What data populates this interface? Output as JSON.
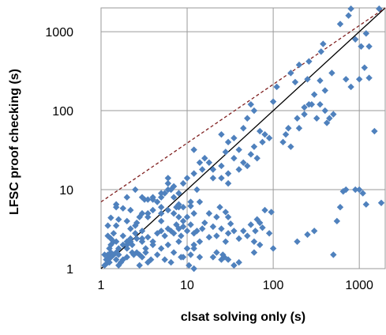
{
  "chart_data": {
    "type": "scatter",
    "xlabel": "clsat solving only (s)",
    "ylabel": "LFSC proof checking (s)",
    "xscale": "log",
    "yscale": "log",
    "xlim": [
      1,
      2000
    ],
    "ylim": [
      1,
      2000
    ],
    "xticks": [
      1,
      10,
      100,
      1000
    ],
    "yticks": [
      1,
      10,
      100,
      1000
    ],
    "xtick_labels": [
      "1",
      "10",
      "100",
      "1000"
    ],
    "ytick_labels": [
      "1",
      "10",
      "100",
      "1000"
    ],
    "grid": true,
    "legend": "none",
    "marker_color": "#4f81bd",
    "reference_lines": [
      {
        "style": "solid",
        "color": "#000000",
        "points": [
          [
            1,
            1
          ],
          [
            2000,
            2000
          ]
        ]
      },
      {
        "style": "dashed",
        "color": "#7f1f1f",
        "points": [
          [
            1,
            7
          ],
          [
            2000,
            2000
          ]
        ]
      }
    ],
    "series": [
      {
        "points": [
          [
            800,
            1950
          ],
          [
            1700,
            1950
          ],
          [
            750,
            1600
          ],
          [
            600,
            1250
          ],
          [
            1200,
            950
          ],
          [
            1300,
            650
          ],
          [
            1050,
            650
          ],
          [
            900,
            800
          ],
          [
            700,
            250
          ],
          [
            1300,
            260
          ],
          [
            1000,
            250
          ],
          [
            1150,
            350
          ],
          [
            800,
            200
          ],
          [
            380,
            700
          ],
          [
            360,
            560
          ],
          [
            260,
            420
          ],
          [
            200,
            380
          ],
          [
            160,
            300
          ],
          [
            110,
            200
          ],
          [
            180,
            230
          ],
          [
            250,
            250
          ],
          [
            350,
            240
          ],
          [
            400,
            180
          ],
          [
            480,
            300
          ],
          [
            300,
            160
          ],
          [
            280,
            120
          ],
          [
            350,
            120
          ],
          [
            320,
            80
          ],
          [
            400,
            100
          ],
          [
            450,
            80
          ],
          [
            500,
            90
          ],
          [
            420,
            70
          ],
          [
            230,
            110
          ],
          [
            230,
            90
          ],
          [
            190,
            80
          ],
          [
            150,
            60
          ],
          [
            140,
            50
          ],
          [
            130,
            40
          ],
          [
            160,
            35
          ],
          [
            200,
            60
          ],
          [
            260,
            120
          ],
          [
            100,
            130
          ],
          [
            60,
            100
          ],
          [
            55,
            120
          ],
          [
            50,
            80
          ],
          [
            45,
            60
          ],
          [
            70,
            55
          ],
          [
            80,
            50
          ],
          [
            90,
            45
          ],
          [
            75,
            40
          ],
          [
            60,
            35
          ],
          [
            55,
            28
          ],
          [
            65,
            25
          ],
          [
            40,
            32
          ],
          [
            35,
            45
          ],
          [
            30,
            40
          ],
          [
            25,
            50
          ],
          [
            28,
            30
          ],
          [
            35,
            25
          ],
          [
            45,
            22
          ],
          [
            50,
            20
          ],
          [
            40,
            18
          ],
          [
            30,
            16
          ],
          [
            25,
            20
          ],
          [
            20,
            18
          ],
          [
            18,
            22
          ],
          [
            16,
            25
          ],
          [
            15,
            18
          ],
          [
            20,
            14
          ],
          [
            25,
            14
          ],
          [
            30,
            12
          ],
          [
            12,
            32
          ],
          [
            14,
            22
          ],
          [
            12,
            16
          ],
          [
            10,
            14
          ],
          [
            9,
            12
          ],
          [
            8,
            9
          ],
          [
            7,
            8
          ],
          [
            6,
            12
          ],
          [
            6,
            10
          ],
          [
            5,
            8
          ],
          [
            5,
            6
          ],
          [
            4,
            8
          ],
          [
            3.5,
            7.5
          ],
          [
            3.2,
            7.5
          ],
          [
            3,
            5
          ],
          [
            2.8,
            4.5
          ],
          [
            2.5,
            3.5
          ],
          [
            2.5,
            2.8
          ],
          [
            2.2,
            2.4
          ],
          [
            2,
            2.2
          ],
          [
            2,
            2
          ],
          [
            1.8,
            2
          ],
          [
            1.6,
            1.8
          ],
          [
            1.5,
            1.6
          ],
          [
            1.4,
            2.2
          ],
          [
            1.4,
            1.5
          ],
          [
            1.3,
            1.4
          ],
          [
            1.25,
            1.2
          ],
          [
            1.2,
            1.2
          ],
          [
            1.15,
            1.3
          ],
          [
            1.1,
            1.1
          ],
          [
            1.2,
            1.5
          ],
          [
            1.25,
            1.8
          ],
          [
            1.3,
            2
          ],
          [
            1.3,
            4.4
          ],
          [
            1.2,
            3.5
          ],
          [
            1.2,
            2.6
          ],
          [
            1.3,
            2.4
          ],
          [
            1.4,
            2.8
          ],
          [
            1.5,
            3.5
          ],
          [
            1.6,
            4.2
          ],
          [
            1.5,
            6.5
          ],
          [
            1.8,
            5.8
          ],
          [
            2,
            4
          ],
          [
            2.2,
            3.2
          ],
          [
            2.2,
            2.2
          ],
          [
            2,
            1.8
          ],
          [
            1.8,
            1.3
          ],
          [
            1.7,
            1.2
          ],
          [
            1.6,
            1.5
          ],
          [
            1.5,
            1.3
          ],
          [
            2,
            1.4
          ],
          [
            2.4,
            1.5
          ],
          [
            2.6,
            1.6
          ],
          [
            2.8,
            1.5
          ],
          [
            3,
            1.4
          ],
          [
            3.3,
            1.6
          ],
          [
            3.5,
            1.2
          ],
          [
            1.5,
            2.2
          ],
          [
            1.8,
            2.6
          ],
          [
            2.3,
            2
          ],
          [
            2.6,
            2.4
          ],
          [
            3,
            2.2
          ],
          [
            3.5,
            2.5
          ],
          [
            4,
            2.2
          ],
          [
            4.5,
            2.8
          ],
          [
            5,
            3
          ],
          [
            5.5,
            2.6
          ],
          [
            6,
            3.2
          ],
          [
            6.5,
            3
          ],
          [
            7,
            2.8
          ],
          [
            7.5,
            3.6
          ],
          [
            8,
            3.2
          ],
          [
            8.5,
            2.6
          ],
          [
            9,
            3.4
          ],
          [
            10,
            3
          ],
          [
            11,
            3.6
          ],
          [
            12,
            2.8
          ],
          [
            9,
            4
          ],
          [
            10,
            4.5
          ],
          [
            8,
            4.5
          ],
          [
            7,
            5
          ],
          [
            6,
            5.5
          ],
          [
            5,
            5
          ],
          [
            12,
            5
          ],
          [
            11,
            6.2
          ],
          [
            8,
            6
          ],
          [
            4,
            5.5
          ],
          [
            4.5,
            7
          ],
          [
            5,
            4
          ],
          [
            3.5,
            4.5
          ],
          [
            3,
            3
          ],
          [
            2.6,
            3.8
          ],
          [
            4,
            7.5
          ],
          [
            3.5,
            5
          ],
          [
            2.2,
            5.5
          ],
          [
            13,
            3
          ],
          [
            14,
            2.2
          ],
          [
            15,
            3.2
          ],
          [
            16,
            3.8
          ],
          [
            18,
            2.5
          ],
          [
            20,
            3.4
          ],
          [
            22,
            2.6
          ],
          [
            25,
            3.2
          ],
          [
            28,
            2.2
          ],
          [
            30,
            2.8
          ],
          [
            35,
            3
          ],
          [
            40,
            2.4
          ],
          [
            45,
            3
          ],
          [
            50,
            2.6
          ],
          [
            60,
            2.2
          ],
          [
            70,
            2
          ],
          [
            55,
            3.6
          ],
          [
            62,
            3
          ],
          [
            65,
            4.2
          ],
          [
            30,
            4.5
          ],
          [
            32,
            3.7
          ],
          [
            10,
            1.8
          ],
          [
            12,
            1.8
          ],
          [
            14,
            1.4
          ],
          [
            20,
            1.4
          ],
          [
            22,
            1.6
          ],
          [
            25,
            1.3
          ],
          [
            35,
            1.1
          ],
          [
            40,
            1.2
          ],
          [
            60,
            1.6
          ],
          [
            12,
            1.0
          ],
          [
            30,
            1.3
          ],
          [
            27,
            1.4
          ],
          [
            26,
            1.5
          ],
          [
            3,
            8
          ],
          [
            2.5,
            10
          ],
          [
            2,
            8
          ],
          [
            1.5,
            6
          ],
          [
            4,
            2
          ],
          [
            5,
            1.8
          ],
          [
            6,
            2
          ],
          [
            7,
            1.6
          ],
          [
            8,
            2.2
          ],
          [
            9,
            1.4
          ],
          [
            10,
            1.8
          ],
          [
            11,
            1.5
          ],
          [
            12,
            2
          ],
          [
            3,
            2.4
          ],
          [
            2.3,
            1.6
          ],
          [
            3.3,
            1.8
          ],
          [
            4.5,
            1.5
          ],
          [
            5.5,
            1.3
          ],
          [
            6.5,
            1.2
          ],
          [
            8.5,
            1.4
          ],
          [
            10.5,
            1.1
          ],
          [
            3.8,
            1.3
          ],
          [
            2.8,
            1.1
          ],
          [
            1.3,
            1.6
          ],
          [
            1.2,
            1.3
          ],
          [
            1.6,
            1.1
          ],
          [
            1.1,
            1.5
          ],
          [
            6,
            14
          ],
          [
            6.5,
            10
          ],
          [
            7,
            11
          ],
          [
            5.5,
            9
          ],
          [
            5,
            9
          ],
          [
            13,
            10
          ],
          [
            14,
            7
          ],
          [
            11,
            7
          ],
          [
            9,
            6
          ],
          [
            8,
            6.5
          ],
          [
            7.5,
            6
          ],
          [
            18,
            5
          ],
          [
            22,
            4.5
          ],
          [
            24,
            6
          ],
          [
            28,
            5.2
          ],
          [
            80,
            5.5
          ],
          [
            70,
            3.8
          ],
          [
            75,
            3.3
          ],
          [
            90,
            2.8
          ],
          [
            95,
            5.2
          ],
          [
            100,
            1.8
          ],
          [
            190,
            2.2
          ],
          [
            250,
            2.7
          ],
          [
            300,
            3
          ],
          [
            500,
            1.5
          ],
          [
            550,
            4
          ],
          [
            600,
            6
          ],
          [
            700,
            10
          ],
          [
            650,
            9.5
          ],
          [
            900,
            10
          ],
          [
            1000,
            10
          ],
          [
            1100,
            9
          ],
          [
            1200,
            6.5
          ],
          [
            1500,
            55
          ],
          [
            1800,
            6.8
          ]
        ]
      }
    ]
  }
}
